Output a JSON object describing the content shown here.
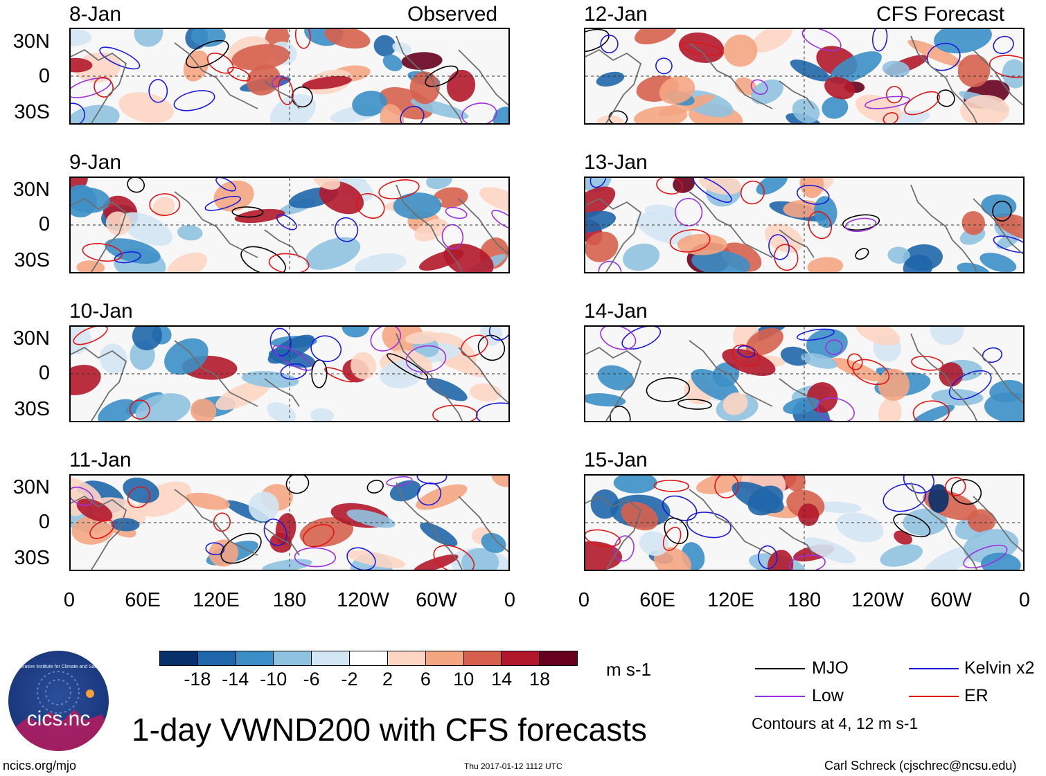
{
  "chart_data": {
    "type": "heatmap",
    "title": "1-day VWND200 with CFS forecasts",
    "observed_label": "Observed",
    "forecast_label": "CFS Forecast",
    "panels_observed": [
      "8-Jan",
      "9-Jan",
      "10-Jan",
      "11-Jan"
    ],
    "panels_forecast": [
      "12-Jan",
      "13-Jan",
      "14-Jan",
      "15-Jan"
    ],
    "lat_ticks": [
      "30N",
      "0",
      "30S"
    ],
    "lon_ticks": [
      "0",
      "60E",
      "120E",
      "180",
      "120W",
      "60W",
      "0"
    ],
    "colorbar": {
      "labels": [
        "-18",
        "-14",
        "-10",
        "-6",
        "-2",
        "2",
        "6",
        "10",
        "14",
        "18"
      ],
      "colors": [
        "#08306b",
        "#1f66aa",
        "#3c8fc6",
        "#8fc2e0",
        "#d3e6f3",
        "#ffffff",
        "#fcd5c3",
        "#f4a582",
        "#d6604d",
        "#b2182b",
        "#67001f"
      ],
      "units": "m s-1"
    },
    "legend": [
      {
        "label": "MJO",
        "color": "#000000"
      },
      {
        "label": "Kelvin x2",
        "color": "#1a1adc"
      },
      {
        "label": "Low",
        "color": "#9b30e0"
      },
      {
        "label": "ER",
        "color": "#e01414"
      }
    ],
    "contour_note": "Contours at 4, 12 m s-1"
  },
  "logo_text": "cics.nc",
  "logo_ring_text": "Cooperative Institute for Climate and Satellites",
  "footer": {
    "url": "ncics.org/mjo",
    "timestamp": "Thu 2017-01-12 1112 UTC",
    "author": "Carl Schreck (cjschrec@ncsu.edu)"
  }
}
